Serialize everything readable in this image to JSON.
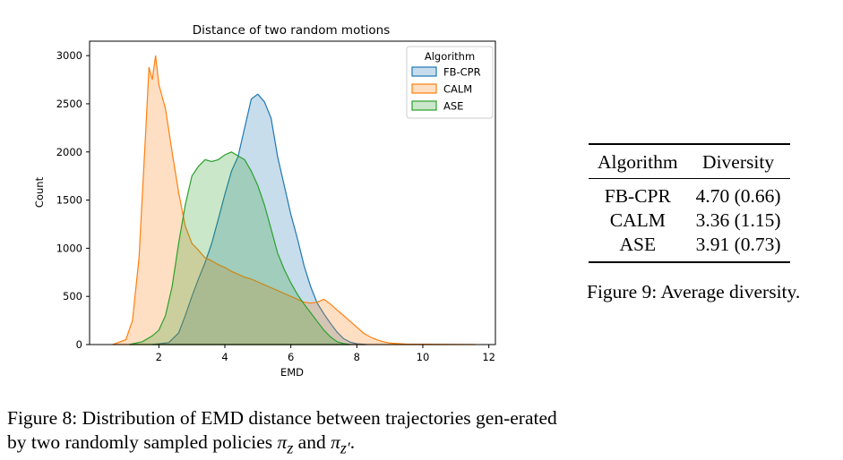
{
  "chart_data": {
    "type": "area",
    "title": "Distance of two random motions",
    "xlabel": "EMD",
    "ylabel": "Count",
    "xlim": [
      -0.1,
      12.2
    ],
    "ylim": [
      0,
      3150
    ],
    "xticks": [
      2,
      4,
      6,
      8,
      10,
      12
    ],
    "yticks": [
      0,
      500,
      1000,
      1500,
      2000,
      2500,
      3000
    ],
    "grid": false,
    "legend_title": "Algorithm",
    "legend_position": "top-right",
    "series": [
      {
        "name": "FB-CPR",
        "color": "#1f77b4",
        "points": [
          [
            1.8,
            0
          ],
          [
            2.3,
            20
          ],
          [
            2.6,
            120
          ],
          [
            2.8,
            300
          ],
          [
            3.0,
            500
          ],
          [
            3.2,
            680
          ],
          [
            3.4,
            850
          ],
          [
            3.6,
            1050
          ],
          [
            3.8,
            1300
          ],
          [
            4.0,
            1560
          ],
          [
            4.2,
            1800
          ],
          [
            4.4,
            1950
          ],
          [
            4.6,
            2250
          ],
          [
            4.8,
            2550
          ],
          [
            5.0,
            2600
          ],
          [
            5.2,
            2520
          ],
          [
            5.4,
            2350
          ],
          [
            5.6,
            1950
          ],
          [
            5.8,
            1650
          ],
          [
            6.0,
            1350
          ],
          [
            6.2,
            1100
          ],
          [
            6.4,
            820
          ],
          [
            6.6,
            600
          ],
          [
            6.8,
            430
          ],
          [
            7.0,
            320
          ],
          [
            7.2,
            220
          ],
          [
            7.4,
            130
          ],
          [
            7.6,
            60
          ],
          [
            7.8,
            25
          ],
          [
            8.0,
            8
          ],
          [
            8.3,
            0
          ]
        ]
      },
      {
        "name": "CALM",
        "color": "#ff7f0e",
        "points": [
          [
            0.6,
            0
          ],
          [
            1.0,
            50
          ],
          [
            1.2,
            250
          ],
          [
            1.4,
            900
          ],
          [
            1.6,
            2200
          ],
          [
            1.7,
            2880
          ],
          [
            1.8,
            2750
          ],
          [
            1.9,
            3000
          ],
          [
            2.0,
            2700
          ],
          [
            2.2,
            2450
          ],
          [
            2.4,
            2000
          ],
          [
            2.6,
            1580
          ],
          [
            2.8,
            1230
          ],
          [
            3.0,
            1050
          ],
          [
            3.2,
            980
          ],
          [
            3.4,
            900
          ],
          [
            3.6,
            870
          ],
          [
            3.8,
            830
          ],
          [
            4.0,
            800
          ],
          [
            4.2,
            760
          ],
          [
            4.4,
            730
          ],
          [
            4.6,
            700
          ],
          [
            4.8,
            680
          ],
          [
            5.0,
            650
          ],
          [
            5.2,
            620
          ],
          [
            5.4,
            590
          ],
          [
            5.6,
            560
          ],
          [
            5.8,
            530
          ],
          [
            6.0,
            500
          ],
          [
            6.2,
            470
          ],
          [
            6.4,
            440
          ],
          [
            6.6,
            430
          ],
          [
            6.8,
            440
          ],
          [
            7.0,
            470
          ],
          [
            7.2,
            420
          ],
          [
            7.4,
            360
          ],
          [
            7.6,
            300
          ],
          [
            7.8,
            240
          ],
          [
            8.0,
            180
          ],
          [
            8.2,
            120
          ],
          [
            8.4,
            80
          ],
          [
            8.6,
            50
          ],
          [
            8.8,
            30
          ],
          [
            9.0,
            15
          ],
          [
            9.5,
            5
          ],
          [
            10.5,
            3
          ],
          [
            11.6,
            0
          ]
        ]
      },
      {
        "name": "ASE",
        "color": "#2ca02c",
        "points": [
          [
            1.1,
            0
          ],
          [
            1.5,
            30
          ],
          [
            1.8,
            90
          ],
          [
            2.0,
            150
          ],
          [
            2.2,
            300
          ],
          [
            2.4,
            600
          ],
          [
            2.6,
            1050
          ],
          [
            2.8,
            1450
          ],
          [
            3.0,
            1750
          ],
          [
            3.2,
            1850
          ],
          [
            3.4,
            1920
          ],
          [
            3.6,
            1900
          ],
          [
            3.8,
            1920
          ],
          [
            4.0,
            1970
          ],
          [
            4.2,
            2000
          ],
          [
            4.4,
            1960
          ],
          [
            4.6,
            1920
          ],
          [
            4.8,
            1800
          ],
          [
            5.0,
            1650
          ],
          [
            5.2,
            1450
          ],
          [
            5.4,
            1200
          ],
          [
            5.6,
            950
          ],
          [
            5.8,
            780
          ],
          [
            6.0,
            640
          ],
          [
            6.2,
            520
          ],
          [
            6.4,
            420
          ],
          [
            6.6,
            330
          ],
          [
            6.8,
            240
          ],
          [
            7.0,
            150
          ],
          [
            7.2,
            80
          ],
          [
            7.4,
            30
          ],
          [
            7.6,
            10
          ],
          [
            7.8,
            0
          ]
        ]
      }
    ]
  },
  "figure8_caption": {
    "label": "Figure 8:",
    "text_1": "Distribution of EMD distance between trajectories gen-erated by two randomly sampled policies",
    "math_1": "π",
    "math_1_sub": "z",
    "joiner": "and",
    "math_2": "π",
    "math_2_sub": "z′",
    "end": "."
  },
  "diversity_table": {
    "headers": [
      "Algorithm",
      "Diversity"
    ],
    "rows": [
      [
        "FB-CPR",
        "4.70 (0.66)"
      ],
      [
        "CALM",
        "3.36 (1.15)"
      ],
      [
        "ASE",
        "3.91 (0.73)"
      ]
    ]
  },
  "figure9_caption": {
    "label": "Figure 9:",
    "text": "Average diversity."
  }
}
